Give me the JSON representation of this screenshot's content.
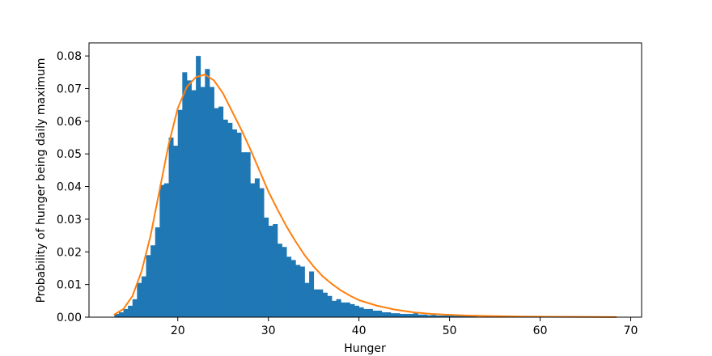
{
  "chart_data": {
    "type": "bar",
    "title": "",
    "xlabel": "Hunger",
    "ylabel": "Probability of hunger being daily maximum",
    "xlim": [
      10.2,
      71.2
    ],
    "ylim": [
      0.0,
      0.084
    ],
    "xticks": [
      20,
      30,
      40,
      50,
      60,
      70
    ],
    "yticks": [
      0.0,
      0.01,
      0.02,
      0.03,
      0.04,
      0.05,
      0.06,
      0.07,
      0.08
    ],
    "xtick_labels": [
      "20",
      "30",
      "40",
      "50",
      "60",
      "70"
    ],
    "ytick_labels": [
      "0.00",
      "0.01",
      "0.02",
      "0.03",
      "0.04",
      "0.05",
      "0.06",
      "0.07",
      "0.08"
    ],
    "grid": false,
    "legend": "none",
    "colors": {
      "bars": "#1f77b4",
      "curve": "#ff7f0e"
    },
    "histogram": {
      "bin_start": 13.0,
      "bin_width": 0.5,
      "heights": [
        0.001,
        0.0015,
        0.0025,
        0.0035,
        0.0055,
        0.0105,
        0.0125,
        0.019,
        0.022,
        0.0275,
        0.0405,
        0.041,
        0.055,
        0.0525,
        0.0635,
        0.075,
        0.0725,
        0.0695,
        0.08,
        0.0705,
        0.076,
        0.0705,
        0.064,
        0.0645,
        0.0605,
        0.0595,
        0.0575,
        0.0565,
        0.0505,
        0.0505,
        0.041,
        0.0425,
        0.0395,
        0.0305,
        0.028,
        0.0285,
        0.0225,
        0.0215,
        0.0185,
        0.0175,
        0.016,
        0.0155,
        0.0105,
        0.014,
        0.0085,
        0.0085,
        0.0075,
        0.0065,
        0.005,
        0.0055,
        0.0045,
        0.0045,
        0.004,
        0.0035,
        0.003,
        0.0025,
        0.0025,
        0.002,
        0.002,
        0.0015,
        0.0015,
        0.0012,
        0.0012,
        0.001,
        0.001,
        0.001,
        0.0012,
        0.0008,
        0.0008,
        0.0006,
        0.0007,
        0.0005,
        0.0005,
        0.0005,
        0.0005,
        0.0004,
        0.0004,
        0.0004,
        0.0003,
        0.0003
      ]
    },
    "curve": {
      "name": "",
      "x": [
        13.0,
        14.0,
        15.0,
        16.0,
        17.0,
        18.0,
        19.0,
        20.0,
        21.0,
        22.0,
        23.0,
        24.0,
        25.0,
        26.0,
        27.0,
        28.0,
        29.0,
        30.0,
        31.0,
        32.0,
        33.0,
        34.0,
        35.0,
        36.0,
        37.0,
        38.0,
        39.0,
        40.0,
        42.0,
        44.0,
        46.0,
        48.0,
        50.0,
        52.0,
        55.0,
        58.0,
        61.0,
        64.0,
        68.4
      ],
      "y": [
        0.0008,
        0.0025,
        0.0065,
        0.014,
        0.025,
        0.039,
        0.053,
        0.064,
        0.0705,
        0.0735,
        0.0743,
        0.0725,
        0.0685,
        0.063,
        0.0575,
        0.0515,
        0.045,
        0.0385,
        0.033,
        0.0278,
        0.0232,
        0.019,
        0.0155,
        0.0125,
        0.0102,
        0.0082,
        0.0066,
        0.0052,
        0.0035,
        0.0023,
        0.0015,
        0.001,
        0.0007,
        0.0005,
        0.0003,
        0.0002,
        0.00012,
        8e-05,
        4e-05
      ]
    }
  }
}
